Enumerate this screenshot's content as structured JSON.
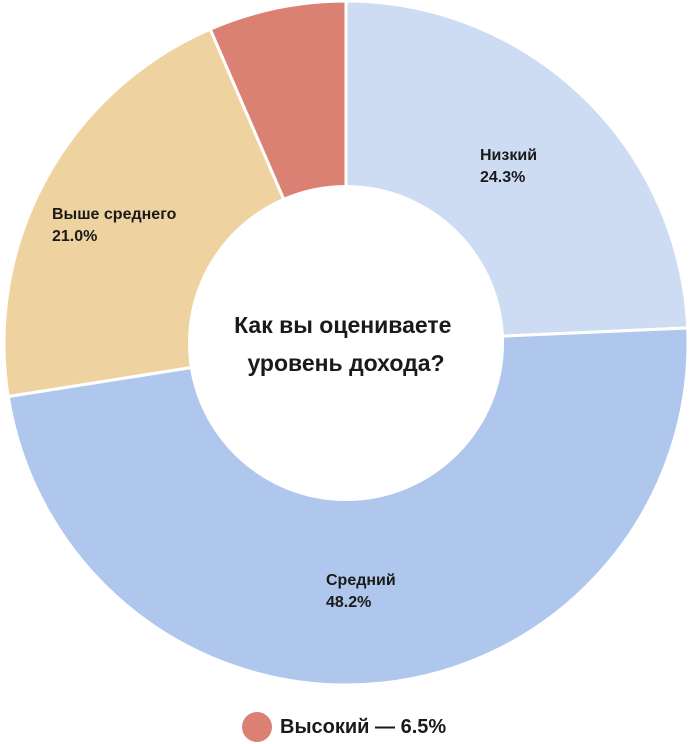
{
  "chart_data": {
    "type": "pie",
    "donut": true,
    "title": "Как вы оцениваете уровень дохода?",
    "title_lines": [
      "Как вы оцениваете",
      "уровень дохода?"
    ],
    "slices": [
      {
        "name": "Низкий",
        "value": 24.3,
        "value_label": "24.3%",
        "color": "#cddcf2"
      },
      {
        "name": "Средний",
        "value": 48.2,
        "value_label": "48.2%",
        "color": "#afc7ec"
      },
      {
        "name": "Выше среднего",
        "value": 21.0,
        "value_label": "21.0%",
        "color": "#eed3a0"
      },
      {
        "name": "Высокий",
        "value": 6.5,
        "value_label": "6.5%",
        "color": "#da8173"
      }
    ],
    "legend": {
      "entries": [
        {
          "text": "Высокий — 6.5%",
          "color": "#da8173"
        }
      ],
      "placement": "bottom-center"
    }
  }
}
